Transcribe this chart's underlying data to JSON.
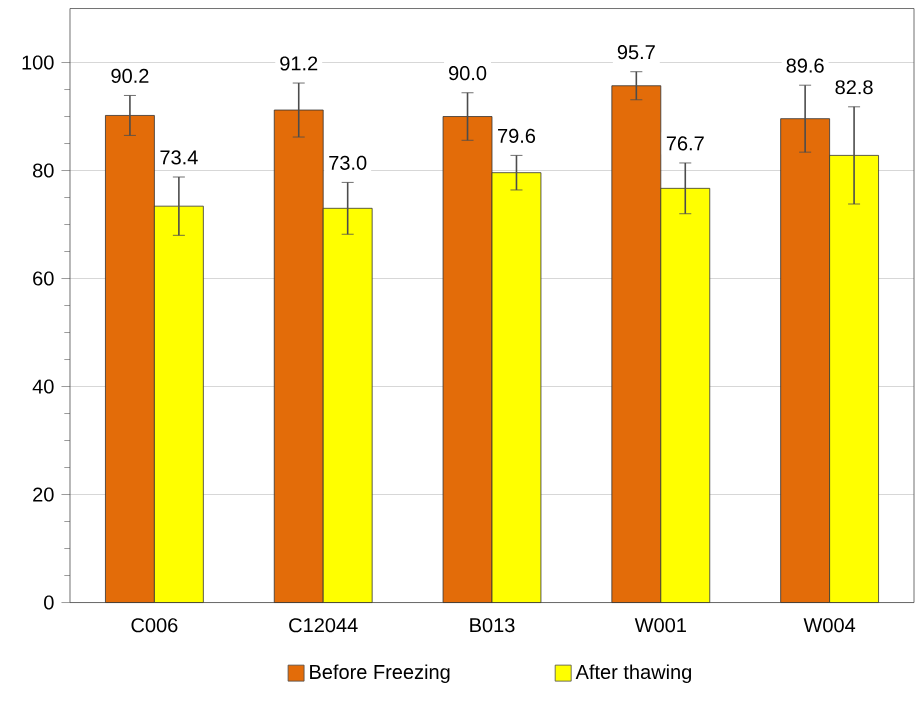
{
  "chart_data": {
    "type": "bar",
    "categories": [
      "C006",
      "C12044",
      "B013",
      "W001",
      "W004"
    ],
    "series": [
      {
        "name": "Before Freezing",
        "color": "#e36c09",
        "values": [
          90.2,
          91.2,
          90.0,
          95.7,
          89.6
        ],
        "errors": [
          3.7,
          5.0,
          4.4,
          2.6,
          6.2
        ],
        "value_labels": [
          "90.2",
          "91.2",
          "90.0",
          "95.7",
          "89.6"
        ]
      },
      {
        "name": "After thawing",
        "color": "#ffff00",
        "values": [
          73.4,
          73.0,
          79.6,
          76.7,
          82.8
        ],
        "errors": [
          5.4,
          4.8,
          3.2,
          4.7,
          9.0
        ],
        "value_labels": [
          "73.4",
          "73.0",
          "79.6",
          "76.7",
          "82.8"
        ]
      }
    ],
    "ylim": [
      0,
      110
    ],
    "yticks": [
      0,
      20,
      40,
      60,
      80,
      100
    ],
    "grid": "y",
    "legend": "bottom"
  }
}
